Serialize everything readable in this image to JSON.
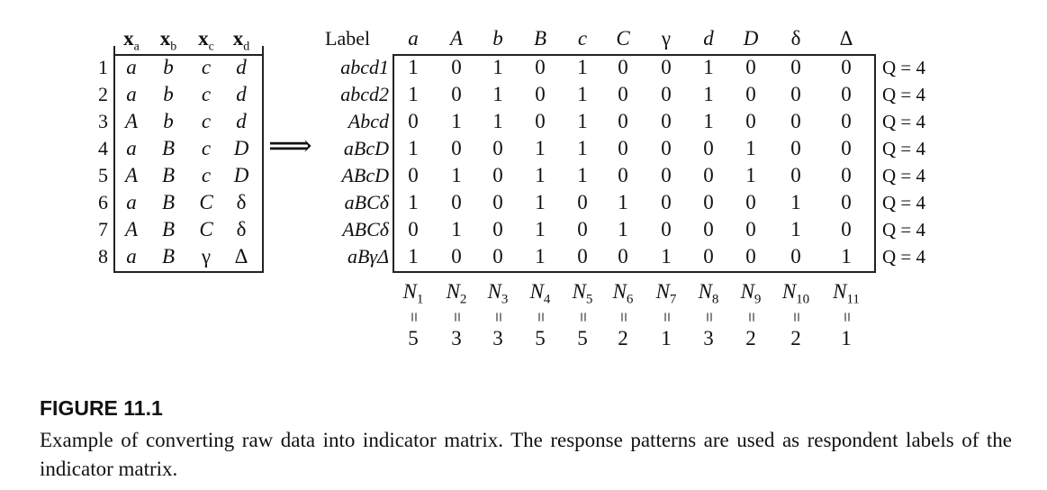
{
  "raw_table": {
    "headers": [
      {
        "var": "x",
        "sub": "a"
      },
      {
        "var": "x",
        "sub": "b"
      },
      {
        "var": "x",
        "sub": "c"
      },
      {
        "var": "x",
        "sub": "d"
      }
    ],
    "row_numbers": [
      "1",
      "2",
      "3",
      "4",
      "5",
      "6",
      "7",
      "8"
    ],
    "rows": [
      [
        "a",
        "b",
        "c",
        "d"
      ],
      [
        "a",
        "b",
        "c",
        "d"
      ],
      [
        "A",
        "b",
        "c",
        "d"
      ],
      [
        "a",
        "B",
        "c",
        "D"
      ],
      [
        "A",
        "B",
        "c",
        "D"
      ],
      [
        "a",
        "B",
        "C",
        "δ"
      ],
      [
        "A",
        "B",
        "C",
        "δ"
      ],
      [
        "a",
        "B",
        "γ",
        "Δ"
      ]
    ]
  },
  "arrow": "⟹",
  "indicator_matrix": {
    "label_header": "Label",
    "columns": [
      "a",
      "A",
      "b",
      "B",
      "c",
      "C",
      "γ",
      "d",
      "D",
      "δ",
      "Δ"
    ],
    "row_labels": [
      "abcd1",
      "abcd2",
      "Abcd",
      "aBcD",
      "ABcD",
      "aBCδ",
      "ABCδ",
      "aBγΔ"
    ],
    "rows": [
      [
        "1",
        "0",
        "1",
        "0",
        "1",
        "0",
        "0",
        "1",
        "0",
        "0",
        "0"
      ],
      [
        "1",
        "0",
        "1",
        "0",
        "1",
        "0",
        "0",
        "1",
        "0",
        "0",
        "0"
      ],
      [
        "0",
        "1",
        "1",
        "0",
        "1",
        "0",
        "0",
        "1",
        "0",
        "0",
        "0"
      ],
      [
        "1",
        "0",
        "0",
        "1",
        "1",
        "0",
        "0",
        "0",
        "1",
        "0",
        "0"
      ],
      [
        "0",
        "1",
        "0",
        "1",
        "1",
        "0",
        "0",
        "0",
        "1",
        "0",
        "0"
      ],
      [
        "1",
        "0",
        "0",
        "1",
        "0",
        "1",
        "0",
        "0",
        "0",
        "1",
        "0"
      ],
      [
        "0",
        "1",
        "0",
        "1",
        "0",
        "1",
        "0",
        "0",
        "0",
        "1",
        "0"
      ],
      [
        "1",
        "0",
        "0",
        "1",
        "0",
        "0",
        "1",
        "0",
        "0",
        "0",
        "1"
      ]
    ],
    "row_totals": [
      "Q = 4",
      "Q = 4",
      "Q = 4",
      "Q = 4",
      "Q = 4",
      "Q = 4",
      "Q = 4",
      "Q = 4"
    ],
    "column_totals_labels": [
      {
        "var": "N",
        "sub": "1"
      },
      {
        "var": "N",
        "sub": "2"
      },
      {
        "var": "N",
        "sub": "3"
      },
      {
        "var": "N",
        "sub": "4"
      },
      {
        "var": "N",
        "sub": "5"
      },
      {
        "var": "N",
        "sub": "6"
      },
      {
        "var": "N",
        "sub": "7"
      },
      {
        "var": "N",
        "sub": "8"
      },
      {
        "var": "N",
        "sub": "9"
      },
      {
        "var": "N",
        "sub": "10"
      },
      {
        "var": "N",
        "sub": "11"
      }
    ],
    "equals_sign": "=",
    "column_totals": [
      "5",
      "3",
      "3",
      "5",
      "5",
      "2",
      "1",
      "3",
      "2",
      "2",
      "1"
    ]
  },
  "caption": {
    "title": "FIGURE 11.1",
    "text": "Example of converting raw data into indicator matrix. The response patterns are used as respondent labels of the indicator matrix."
  }
}
